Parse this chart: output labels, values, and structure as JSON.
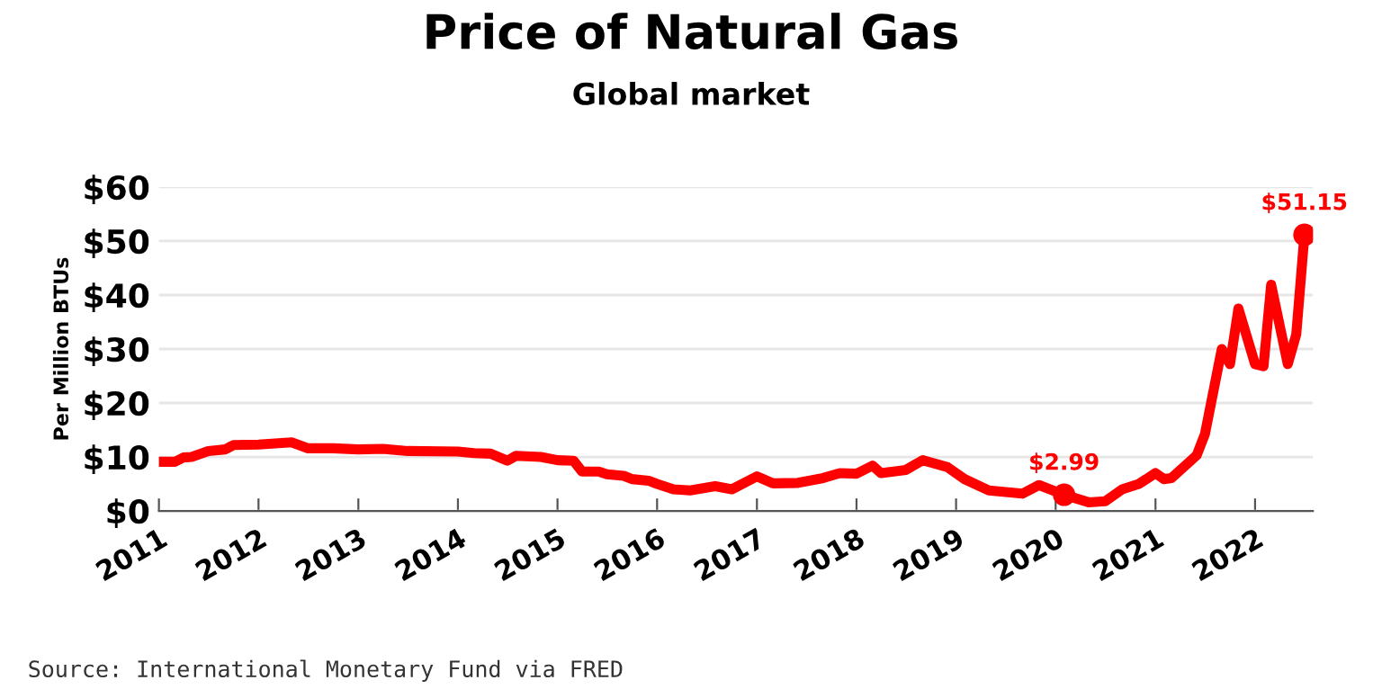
{
  "chart_data": {
    "type": "line",
    "title": "Price of Natural Gas",
    "subtitle": "Global market",
    "ylabel": "Per Million BTUs",
    "x": [
      "2011-01",
      "2011-03",
      "2011-04",
      "2011-05",
      "2011-07",
      "2011-09",
      "2011-10",
      "2012-01",
      "2012-05",
      "2012-07",
      "2012-10",
      "2013-01",
      "2013-04",
      "2013-07",
      "2014-01",
      "2014-03",
      "2014-05",
      "2014-07",
      "2014-08",
      "2014-11",
      "2015-01",
      "2015-03",
      "2015-04",
      "2015-06",
      "2015-07",
      "2015-09",
      "2015-10",
      "2015-12",
      "2016-01",
      "2016-03",
      "2016-05",
      "2016-08",
      "2016-10",
      "2017-01",
      "2017-03",
      "2017-06",
      "2017-09",
      "2017-11",
      "2018-01",
      "2018-03",
      "2018-04",
      "2018-07",
      "2018-09",
      "2018-12",
      "2019-02",
      "2019-05",
      "2019-09",
      "2019-11",
      "2020-02",
      "2020-05",
      "2020-07",
      "2020-09",
      "2020-11",
      "2021-01",
      "2021-02",
      "2021-03",
      "2021-06",
      "2021-07",
      "2021-09",
      "2021-10",
      "2021-11",
      "2022-01",
      "2022-02",
      "2022-03",
      "2022-05",
      "2022-06",
      "2022-07"
    ],
    "series": [
      {
        "color": "#ff0000",
        "values": [
          9.1,
          9.1,
          9.9,
          10,
          11.1,
          11.4,
          12.2,
          12.3,
          12.7,
          11.6,
          11.6,
          11.4,
          11.5,
          11.1,
          11,
          10.7,
          10.6,
          9.3,
          10.2,
          10,
          9.4,
          9.3,
          7.3,
          7.3,
          6.8,
          6.5,
          5.9,
          5.6,
          5,
          4,
          3.8,
          4.6,
          4,
          6.4,
          5.1,
          5.2,
          6.1,
          7,
          6.9,
          8.4,
          7,
          7.6,
          9.4,
          8.1,
          5.9,
          3.8,
          3.2,
          4.8,
          2.99,
          1.6,
          1.8,
          4,
          5,
          7,
          5.9,
          6.1,
          10.3,
          14.2,
          30,
          27.2,
          37.5,
          27.2,
          26.8,
          41.9,
          27.2,
          32.7,
          51.15
        ]
      }
    ],
    "xlim": [
      "2011-01",
      "2022-08"
    ],
    "xticks": [
      "2011",
      "2012",
      "2013",
      "2014",
      "2015",
      "2016",
      "2017",
      "2018",
      "2019",
      "2020",
      "2021",
      "2022"
    ],
    "ylim": [
      0,
      60
    ],
    "yticks": [
      {
        "value": 0,
        "label": "$0"
      },
      {
        "value": 10,
        "label": "$10"
      },
      {
        "value": 20,
        "label": "$20"
      },
      {
        "value": 30,
        "label": "$30"
      },
      {
        "value": 40,
        "label": "$40"
      },
      {
        "value": 50,
        "label": "$50"
      },
      {
        "value": 60,
        "label": "$60"
      }
    ],
    "grid": "y",
    "legend": false,
    "marker": "none",
    "line_style": "solid",
    "annotations": [
      {
        "text": "$2.99",
        "x": "2020-02",
        "y": 2.99
      },
      {
        "text": "$51.15",
        "x": "2022-07",
        "y": 51.15
      },
      "Source: International Monetary Fund via FRED"
    ]
  }
}
